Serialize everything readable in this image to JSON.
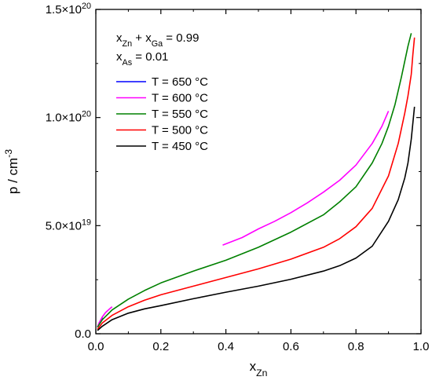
{
  "chart_data": {
    "type": "line",
    "xlabel": {
      "base": "x",
      "sub": "Zn"
    },
    "ylabel": {
      "base": "p / cm",
      "sup": "-3"
    },
    "xlim": [
      0.0,
      1.0
    ],
    "ylim": [
      0,
      1.5e+20
    ],
    "x_ticks": [
      "0.0",
      "0.2",
      "0.4",
      "0.6",
      "0.8",
      "1.0"
    ],
    "y_ticks": [
      {
        "value": 0,
        "mantissa": "0.0",
        "exp": ""
      },
      {
        "value": 5e+19,
        "mantissa": "5.0×10",
        "exp": "19"
      },
      {
        "value": 1e+20,
        "mantissa": "1.0×10",
        "exp": "20"
      },
      {
        "value": 1.5e+20,
        "mantissa": "1.5×10",
        "exp": "20"
      }
    ],
    "annotation": {
      "line1": [
        {
          "t": "x"
        },
        {
          "t": "Zn",
          "sub": true
        },
        {
          "t": " + x"
        },
        {
          "t": "Ga",
          "sub": true
        },
        {
          "t": " = 0.99"
        }
      ],
      "line2": [
        {
          "t": "x"
        },
        {
          "t": "As",
          "sub": true
        },
        {
          "t": " = 0.01"
        }
      ]
    },
    "legend_position": "top-left",
    "grid": false,
    "series": [
      {
        "name": "T = 650 °C",
        "color": "#0000ff",
        "x": [
          0.005,
          0.01,
          0.015,
          0.02
        ],
        "y": [
          3e+18,
          4.5e+18,
          6e+18,
          7.5e+18
        ]
      },
      {
        "name": "T = 600 °C",
        "color": "#ff00ff",
        "x_segments": [
          [
            0.005,
            0.01,
            0.02,
            0.03,
            0.04,
            0.05
          ],
          [
            0.39,
            0.45,
            0.5,
            0.55,
            0.6,
            0.65,
            0.7,
            0.75,
            0.8,
            0.85,
            0.88,
            0.9
          ]
        ],
        "y_segments": [
          [
            3e+18,
            5e+18,
            7.8e+18,
            9.8e+18,
            1.12e+19,
            1.25e+19
          ],
          [
            4.1e+19,
            4.45e+19,
            4.85e+19,
            5.2e+19,
            5.6e+19,
            6.05e+19,
            6.55e+19,
            7.1e+19,
            7.8e+19,
            8.8e+19,
            9.6e+19,
            1.03e+20
          ]
        ]
      },
      {
        "name": "T = 550 °C",
        "color": "#008000",
        "x": [
          0.005,
          0.02,
          0.05,
          0.1,
          0.15,
          0.2,
          0.3,
          0.4,
          0.5,
          0.6,
          0.7,
          0.75,
          0.8,
          0.85,
          0.88,
          0.9,
          0.92,
          0.94,
          0.95,
          0.96,
          0.97
        ],
        "y": [
          3e+18,
          6.5e+18,
          1.1e+19,
          1.6e+19,
          2e+19,
          2.35e+19,
          2.9e+19,
          3.4e+19,
          4e+19,
          4.7e+19,
          5.5e+19,
          6.1e+19,
          6.8e+19,
          7.9e+19,
          8.8e+19,
          9.6e+19,
          1.06e+20,
          1.19e+20,
          1.26e+20,
          1.33e+20,
          1.39e+20
        ]
      },
      {
        "name": "T = 500 °C",
        "color": "#ff0000",
        "x": [
          0.005,
          0.02,
          0.05,
          0.1,
          0.15,
          0.2,
          0.3,
          0.4,
          0.5,
          0.6,
          0.7,
          0.75,
          0.8,
          0.85,
          0.9,
          0.93,
          0.95,
          0.96,
          0.97,
          0.975,
          0.98
        ],
        "y": [
          2e+18,
          5e+18,
          8.5e+18,
          1.25e+19,
          1.55e+19,
          1.8e+19,
          2.2e+19,
          2.6e+19,
          3e+19,
          3.45e+19,
          4e+19,
          4.4e+19,
          4.95e+19,
          5.8e+19,
          7.3e+19,
          8.8e+19,
          1.02e+20,
          1.1e+20,
          1.2e+20,
          1.29e+20,
          1.37e+20
        ]
      },
      {
        "name": "T = 450 °C",
        "color": "#000000",
        "x": [
          0.005,
          0.02,
          0.05,
          0.1,
          0.15,
          0.2,
          0.3,
          0.4,
          0.5,
          0.6,
          0.7,
          0.75,
          0.8,
          0.85,
          0.9,
          0.93,
          0.95,
          0.96,
          0.97,
          0.98
        ],
        "y": [
          1.5e+18,
          3.5e+18,
          6.5e+18,
          9.5e+18,
          1.15e+19,
          1.3e+19,
          1.62e+19,
          1.92e+19,
          2.2e+19,
          2.52e+19,
          2.9e+19,
          3.15e+19,
          3.5e+19,
          4.05e+19,
          5.2e+19,
          6.2e+19,
          7.2e+19,
          7.9e+19,
          9e+19,
          1.05e+20
        ]
      }
    ]
  }
}
